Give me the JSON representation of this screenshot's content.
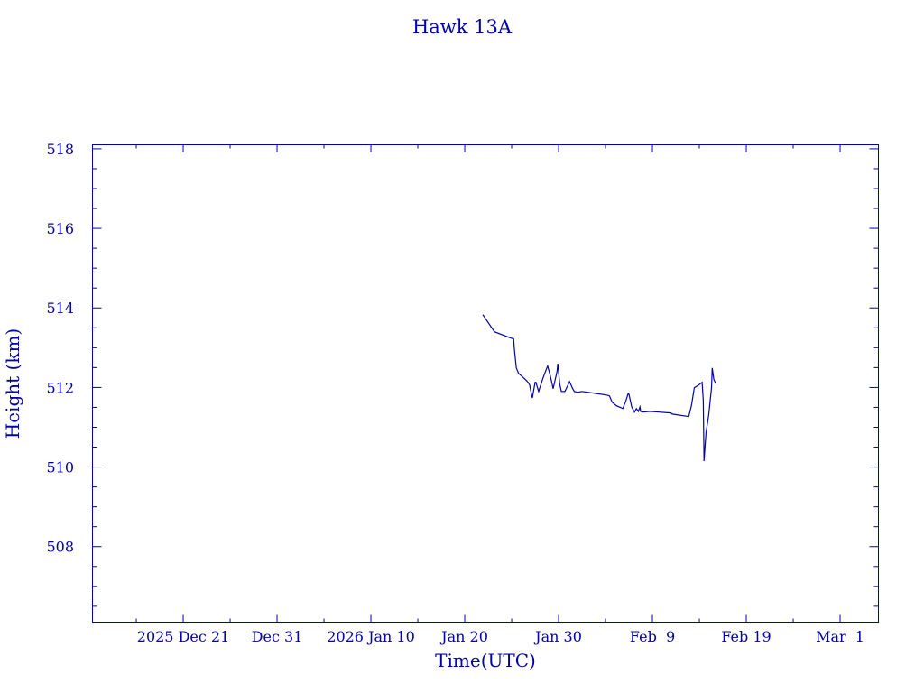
{
  "chart_data": {
    "type": "line",
    "title": "Hawk 13A",
    "xlabel": "Time(UTC)",
    "ylabel": "Height (km)",
    "color": "#0000a8",
    "grid": false,
    "xlim": [
      "2025-12-11T08:00",
      "2026-03-05T02:00"
    ],
    "ylim": [
      506.1,
      518.1
    ],
    "y_ticks": [
      508,
      510,
      512,
      514,
      516,
      518
    ],
    "x_ticks": [
      {
        "date": "2025-12-21",
        "label": "2025 Dec 21"
      },
      {
        "date": "2025-12-31",
        "label": "Dec 31"
      },
      {
        "date": "2026-01-10",
        "label": "2026 Jan 10"
      },
      {
        "date": "2026-01-20",
        "label": "Jan 20"
      },
      {
        "date": "2026-01-30",
        "label": "Jan 30"
      },
      {
        "date": "2026-02-09",
        "label": "Feb  9"
      },
      {
        "date": "2026-02-19",
        "label": "Feb 19"
      },
      {
        "date": "2026-03-01",
        "label": "Mar  1"
      }
    ],
    "series": [
      {
        "x": [
          "2026-01-21T22:00",
          "2026-01-23T04:00",
          "2026-01-24T22:00",
          "2026-01-25T05:00",
          "2026-01-25T07:00",
          "2026-01-25T12:00",
          "2026-01-25T18:00",
          "2026-01-26T01:00",
          "2026-01-26T11:00",
          "2026-01-26T18:00",
          "2026-01-26T22:00",
          "2026-01-27T03:00",
          "2026-01-27T05:00",
          "2026-01-27T12:00",
          "2026-01-27T14:00",
          "2026-01-27T21:00",
          "2026-01-28T09:00",
          "2026-01-28T18:00",
          "2026-01-28T20:00",
          "2026-01-29T03:00",
          "2026-01-29T10:00",
          "2026-01-29T20:00",
          "2026-01-29T22:00",
          "2026-01-30T03:00",
          "2026-01-30T07:00",
          "2026-01-30T16:00",
          "2026-01-30T23:00",
          "2026-01-31T04:00",
          "2026-01-31T11:00",
          "2026-01-31T16:00",
          "2026-02-01T01:00",
          "2026-02-01T12:00",
          "2026-02-02T23:00",
          "2026-02-04T03:00",
          "2026-02-04T10:00",
          "2026-02-04T17:00",
          "2026-02-05T04:00",
          "2026-02-05T16:00",
          "2026-02-05T20:00",
          "2026-02-06T03:00",
          "2026-02-06T10:00",
          "2026-02-06T12:00",
          "2026-02-06T19:00",
          "2026-02-07T02:00",
          "2026-02-07T07:00",
          "2026-02-07T12:00",
          "2026-02-07T16:00",
          "2026-02-07T18:00",
          "2026-02-07T23:00",
          "2026-02-08T18:00",
          "2026-02-09T17:00",
          "2026-02-10T23:00",
          "2026-02-11T03:00",
          "2026-02-12T21:00",
          "2026-02-13T04:00",
          "2026-02-13T11:00",
          "2026-02-13T22:00",
          "2026-02-14T07:00",
          "2026-02-14T10:00",
          "2026-02-14T12:00",
          "2026-02-14T17:00",
          "2026-02-15T00:00",
          "2026-02-15T07:00",
          "2026-02-15T09:00",
          "2026-02-15T13:00",
          "2026-02-15T18:00"
        ],
        "y": [
          513.83,
          513.4,
          513.24,
          513.22,
          512.94,
          512.49,
          512.35,
          512.29,
          512.2,
          512.13,
          512.06,
          511.81,
          511.74,
          512.13,
          512.13,
          511.9,
          512.26,
          512.49,
          512.54,
          512.29,
          511.97,
          512.4,
          512.6,
          512.08,
          511.9,
          511.9,
          512.04,
          512.15,
          511.99,
          511.9,
          511.88,
          511.9,
          511.85,
          511.81,
          511.79,
          511.63,
          511.54,
          511.49,
          511.47,
          511.63,
          511.85,
          511.83,
          511.51,
          511.38,
          511.47,
          511.4,
          511.51,
          511.4,
          511.38,
          511.4,
          511.38,
          511.36,
          511.33,
          511.27,
          511.56,
          511.99,
          512.06,
          512.13,
          511.67,
          510.15,
          510.86,
          511.31,
          511.99,
          512.49,
          512.2,
          512.1
        ]
      }
    ]
  }
}
